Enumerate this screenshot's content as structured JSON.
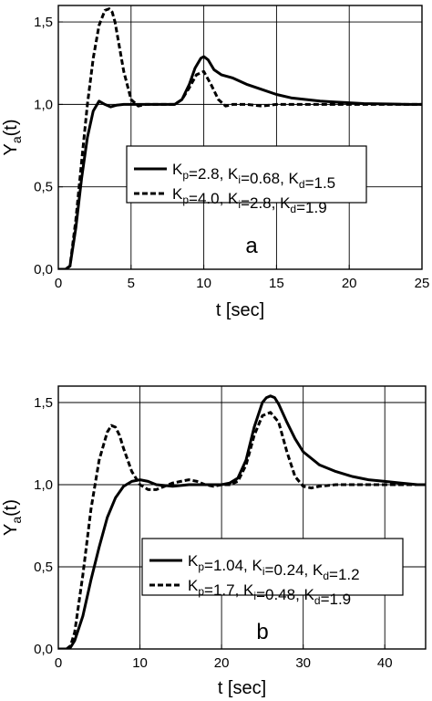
{
  "chart_data": [
    {
      "type": "line",
      "panel_label": "a",
      "xlabel": "t [sec]",
      "ylabel_main": "Y",
      "ylabel_sub": "a",
      "ylabel_tail": "(t)",
      "xlim": [
        0,
        25
      ],
      "ylim": [
        0,
        1.6
      ],
      "xticks": [
        0,
        5,
        10,
        15,
        20,
        25
      ],
      "xtick_labels": [
        "0",
        "5",
        "10",
        "15",
        "20",
        "25"
      ],
      "yticks": [
        0,
        0.5,
        1.0,
        1.5
      ],
      "ytick_labels": [
        "0,0",
        "0,5",
        "1,0",
        "1,5"
      ],
      "grid": true,
      "legend_position": "center-right",
      "series": [
        {
          "name": "Kp=2.8, Ki=0.68, Kd=1.5",
          "legend_parts": [
            {
              "t": "K",
              "sub": ""
            },
            {
              "t": "",
              "sub": "p"
            },
            {
              "t": "=2.8, K",
              "sub": ""
            },
            {
              "t": "",
              "sub": "i"
            },
            {
              "t": "=0.68, K",
              "sub": ""
            },
            {
              "t": "",
              "sub": "d"
            },
            {
              "t": "=1.5",
              "sub": ""
            }
          ],
          "style": "solid",
          "x": [
            0,
            0.5,
            0.8,
            1.2,
            1.6,
            2.0,
            2.4,
            2.8,
            3.2,
            3.6,
            4.0,
            4.5,
            5.0,
            6.0,
            7.0,
            8.0,
            8.5,
            9.0,
            9.4,
            9.8,
            10.0,
            10.3,
            10.7,
            11.2,
            12.0,
            13.0,
            14.0,
            15.0,
            16.0,
            17.0,
            18.0,
            19.0,
            20.0,
            21.0,
            22.0,
            23.0,
            24.0,
            25.0
          ],
          "y": [
            0,
            0,
            0.02,
            0.25,
            0.55,
            0.8,
            0.96,
            1.02,
            1.0,
            0.985,
            0.995,
            1.0,
            1.0,
            1.0,
            1.0,
            1.0,
            1.03,
            1.12,
            1.22,
            1.28,
            1.29,
            1.27,
            1.21,
            1.18,
            1.16,
            1.12,
            1.09,
            1.06,
            1.04,
            1.03,
            1.02,
            1.015,
            1.01,
            1.005,
            1.003,
            1.002,
            1.0,
            1.0
          ]
        },
        {
          "name": "Kp=4.0, Ki=2.8, Kd=1.9",
          "legend_parts": [
            {
              "t": "K",
              "sub": ""
            },
            {
              "t": "",
              "sub": "p"
            },
            {
              "t": "=4.0, K",
              "sub": ""
            },
            {
              "t": "",
              "sub": "i"
            },
            {
              "t": "=2.8, K",
              "sub": ""
            },
            {
              "t": "",
              "sub": "d"
            },
            {
              "t": "=1.9",
              "sub": ""
            }
          ],
          "style": "dashed",
          "x": [
            0,
            0.5,
            0.8,
            1.2,
            1.6,
            2.0,
            2.4,
            2.8,
            3.2,
            3.5,
            3.7,
            3.9,
            4.2,
            4.5,
            5.0,
            5.5,
            6.0,
            7.0,
            8.0,
            8.5,
            9.0,
            9.5,
            10.0,
            10.5,
            11.0,
            11.5,
            12.0,
            13.0,
            14.0,
            15.0,
            17.0,
            20.0,
            22.0,
            25.0
          ],
          "y": [
            0,
            0,
            0.02,
            0.3,
            0.65,
            1.0,
            1.28,
            1.48,
            1.57,
            1.58,
            1.56,
            1.5,
            1.35,
            1.2,
            1.03,
            0.99,
            1.0,
            1.0,
            1.0,
            1.03,
            1.1,
            1.18,
            1.2,
            1.12,
            1.03,
            0.99,
            1.0,
            1.0,
            0.99,
            1.0,
            1.0,
            1.0,
            1.0,
            1.0
          ]
        }
      ]
    },
    {
      "type": "line",
      "panel_label": "b",
      "xlabel": "t [sec]",
      "ylabel_main": "Y",
      "ylabel_sub": "a",
      "ylabel_tail": "(t)",
      "xlim": [
        0,
        45
      ],
      "ylim": [
        0,
        1.6
      ],
      "xticks": [
        0,
        10,
        20,
        30,
        40
      ],
      "xtick_labels": [
        "0",
        "10",
        "20",
        "30",
        "40"
      ],
      "yticks": [
        0,
        0.5,
        1.0,
        1.5
      ],
      "ytick_labels": [
        "0,0",
        "0,5",
        "1,0",
        "1,5"
      ],
      "grid": true,
      "legend_position": "center-right",
      "series": [
        {
          "name": "Kp=1.04, Ki=0.24, Kd=1.2",
          "legend_parts": [
            {
              "t": "K",
              "sub": ""
            },
            {
              "t": "",
              "sub": "p"
            },
            {
              "t": "=1.04, K",
              "sub": ""
            },
            {
              "t": "",
              "sub": "i"
            },
            {
              "t": "=0.24, K",
              "sub": ""
            },
            {
              "t": "",
              "sub": "d"
            },
            {
              "t": "=1.2",
              "sub": ""
            }
          ],
          "style": "solid",
          "x": [
            0,
            1.0,
            1.5,
            2.0,
            3.0,
            4.0,
            5.0,
            6.0,
            7.0,
            8.0,
            9.0,
            10.0,
            11.0,
            12.0,
            14.0,
            16.0,
            18.0,
            20.0,
            21.0,
            22.0,
            23.0,
            24.0,
            25.0,
            25.5,
            26.0,
            26.5,
            27.0,
            28.0,
            29.0,
            30.0,
            32.0,
            34.0,
            36.0,
            38.0,
            40.0,
            42.0,
            44.0,
            45.0
          ],
          "y": [
            0,
            0,
            0.01,
            0.05,
            0.2,
            0.42,
            0.62,
            0.8,
            0.92,
            0.99,
            1.02,
            1.03,
            1.02,
            1.0,
            0.99,
            1.0,
            1.0,
            1.0,
            1.01,
            1.04,
            1.15,
            1.35,
            1.5,
            1.53,
            1.54,
            1.53,
            1.49,
            1.38,
            1.28,
            1.2,
            1.12,
            1.08,
            1.05,
            1.03,
            1.02,
            1.01,
            1.0,
            1.0
          ]
        },
        {
          "name": "Kp=1.7, Ki=0.48, Kd=1.9",
          "legend_parts": [
            {
              "t": "K",
              "sub": ""
            },
            {
              "t": "",
              "sub": "p"
            },
            {
              "t": "=1.7, K",
              "sub": ""
            },
            {
              "t": "",
              "sub": "i"
            },
            {
              "t": "=0.48, K",
              "sub": ""
            },
            {
              "t": "",
              "sub": "d"
            },
            {
              "t": "=1.9",
              "sub": ""
            }
          ],
          "style": "dashed",
          "x": [
            0,
            1.0,
            1.5,
            2.0,
            3.0,
            4.0,
            5.0,
            6.0,
            6.5,
            7.0,
            7.5,
            8.0,
            9.0,
            10.0,
            11.0,
            12.0,
            13.0,
            14.0,
            15.0,
            16.0,
            17.0,
            18.0,
            19.0,
            20.0,
            21.0,
            22.0,
            23.0,
            24.0,
            25.0,
            26.0,
            27.0,
            28.0,
            29.0,
            30.0,
            31.0,
            32.0,
            34.0,
            36.0,
            40.0,
            45.0
          ],
          "y": [
            0,
            0,
            0.02,
            0.1,
            0.45,
            0.85,
            1.15,
            1.32,
            1.36,
            1.35,
            1.3,
            1.22,
            1.08,
            1.0,
            0.97,
            0.97,
            0.99,
            1.01,
            1.02,
            1.03,
            1.02,
            1.0,
            0.99,
            1.0,
            1.0,
            1.02,
            1.12,
            1.3,
            1.42,
            1.44,
            1.38,
            1.2,
            1.05,
            0.99,
            0.98,
            0.99,
            1.0,
            1.0,
            1.0,
            1.0
          ]
        }
      ]
    }
  ]
}
